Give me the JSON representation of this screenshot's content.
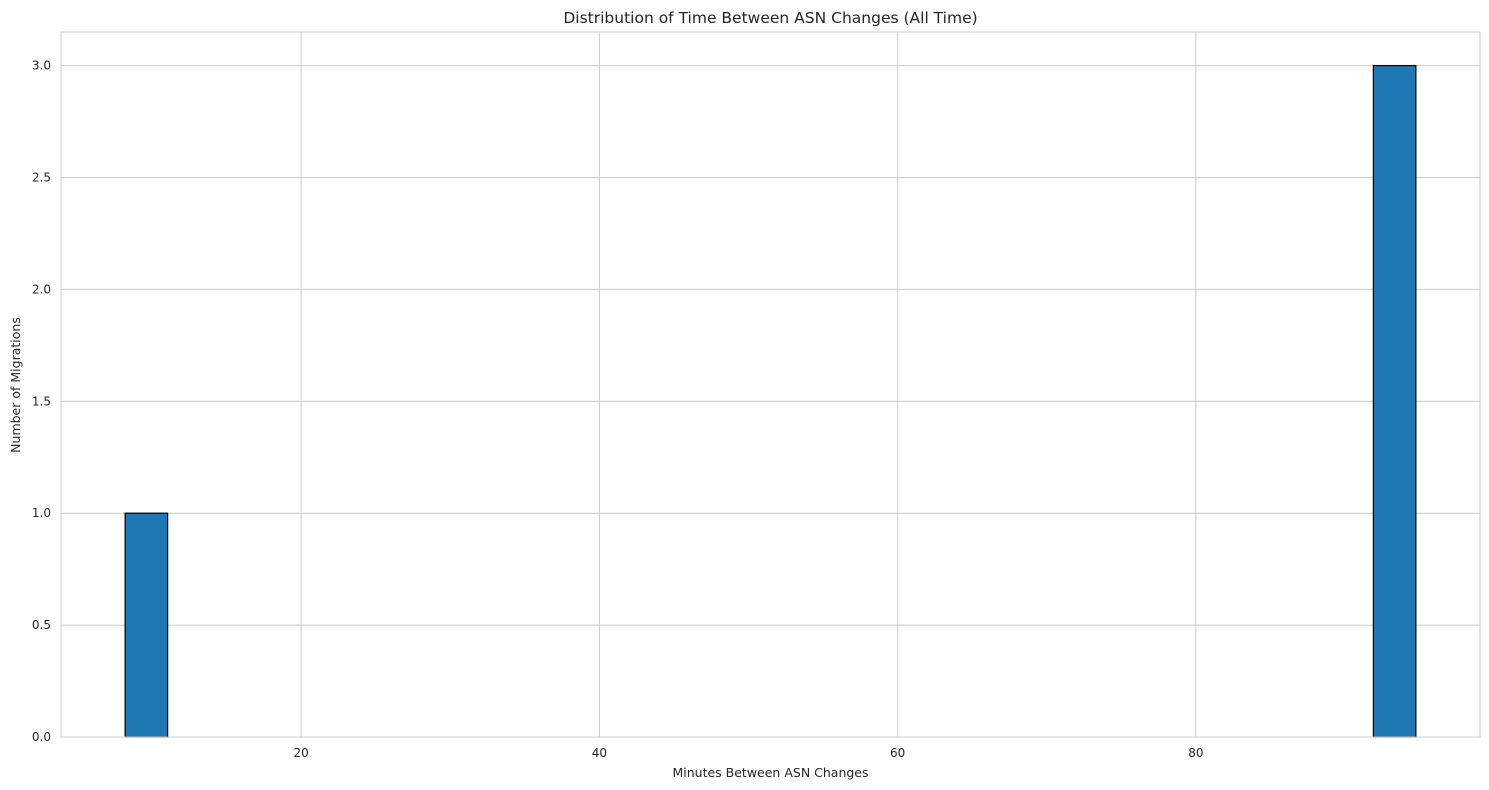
{
  "chart_data": {
    "type": "bar",
    "title": "Distribution of Time Between ASN Changes (All Time)",
    "xlabel": "Minutes Between ASN Changes",
    "ylabel": "Number of Migrations",
    "bins": [
      {
        "start": 8.2,
        "end": 11.05,
        "count": 1
      },
      {
        "start": 91.9,
        "end": 94.75,
        "count": 3
      }
    ],
    "xlim": [
      3.9,
      99.05
    ],
    "ylim": [
      0,
      3.15
    ],
    "xticks": [
      20,
      40,
      60,
      80
    ],
    "yticks": [
      0.0,
      0.5,
      1.0,
      1.5,
      2.0,
      2.5,
      3.0
    ],
    "bar_color": "#1f77b4",
    "grid": true
  }
}
